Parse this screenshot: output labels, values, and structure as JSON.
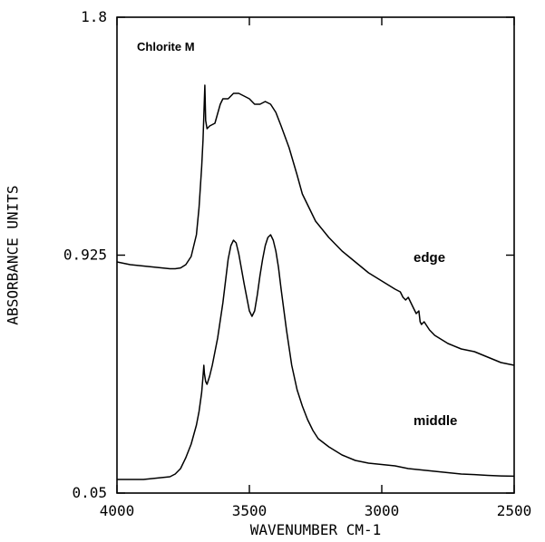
{
  "chart_data": {
    "type": "line",
    "title": "",
    "xlabel": "WAVENUMBER CM-1",
    "ylabel": "ABSORBANCE UNITS",
    "xlim": [
      4000,
      2500
    ],
    "ylim": [
      0.05,
      1.8
    ],
    "x_ticks": [
      {
        "value": 4000,
        "label": "4000"
      },
      {
        "value": 3500,
        "label": "3500"
      },
      {
        "value": 3000,
        "label": "3000"
      },
      {
        "value": 2500,
        "label": "2500"
      }
    ],
    "y_ticks": [
      {
        "value": 0.05,
        "label": "0.05"
      },
      {
        "value": 0.925,
        "label": "0.925"
      },
      {
        "value": 1.8,
        "label": "1.8"
      }
    ],
    "annotations": [
      {
        "text": "Chlorite M",
        "anchor": "top-left"
      }
    ],
    "series": [
      {
        "name": "edge",
        "label_at": [
          2880,
          0.9
        ],
        "x": [
          4000,
          3950,
          3900,
          3850,
          3800,
          3780,
          3760,
          3740,
          3720,
          3700,
          3690,
          3680,
          3675,
          3670,
          3668,
          3665,
          3660,
          3650,
          3630,
          3610,
          3600,
          3580,
          3560,
          3540,
          3520,
          3500,
          3480,
          3460,
          3440,
          3420,
          3400,
          3380,
          3350,
          3320,
          3300,
          3250,
          3200,
          3150,
          3100,
          3050,
          3000,
          2950,
          2930,
          2920,
          2910,
          2900,
          2880,
          2870,
          2860,
          2855,
          2850,
          2840,
          2820,
          2800,
          2750,
          2700,
          2650,
          2600,
          2550,
          2500
        ],
        "y": [
          0.9,
          0.89,
          0.885,
          0.88,
          0.875,
          0.875,
          0.878,
          0.89,
          0.92,
          1.0,
          1.1,
          1.25,
          1.35,
          1.5,
          1.55,
          1.42,
          1.39,
          1.4,
          1.41,
          1.48,
          1.5,
          1.5,
          1.52,
          1.52,
          1.51,
          1.5,
          1.48,
          1.48,
          1.49,
          1.48,
          1.45,
          1.4,
          1.32,
          1.22,
          1.15,
          1.05,
          0.99,
          0.94,
          0.9,
          0.86,
          0.83,
          0.8,
          0.79,
          0.77,
          0.76,
          0.77,
          0.73,
          0.71,
          0.72,
          0.68,
          0.67,
          0.68,
          0.65,
          0.63,
          0.6,
          0.58,
          0.57,
          0.55,
          0.53,
          0.52
        ]
      },
      {
        "name": "middle",
        "label_at": [
          2880,
          0.3
        ],
        "x": [
          4000,
          3950,
          3900,
          3850,
          3800,
          3780,
          3760,
          3740,
          3720,
          3700,
          3690,
          3680,
          3675,
          3672,
          3670,
          3665,
          3660,
          3650,
          3640,
          3620,
          3600,
          3590,
          3580,
          3570,
          3560,
          3550,
          3540,
          3520,
          3500,
          3490,
          3480,
          3470,
          3460,
          3450,
          3440,
          3430,
          3420,
          3410,
          3400,
          3390,
          3380,
          3360,
          3340,
          3320,
          3300,
          3280,
          3260,
          3240,
          3200,
          3150,
          3100,
          3050,
          3000,
          2950,
          2900,
          2850,
          2800,
          2750,
          2700,
          2650,
          2600,
          2550,
          2500
        ],
        "y": [
          0.1,
          0.1,
          0.1,
          0.105,
          0.11,
          0.12,
          0.14,
          0.18,
          0.23,
          0.3,
          0.35,
          0.42,
          0.48,
          0.52,
          0.49,
          0.46,
          0.45,
          0.48,
          0.52,
          0.62,
          0.75,
          0.83,
          0.91,
          0.96,
          0.98,
          0.97,
          0.93,
          0.82,
          0.72,
          0.7,
          0.72,
          0.78,
          0.85,
          0.91,
          0.96,
          0.99,
          1.0,
          0.98,
          0.94,
          0.88,
          0.8,
          0.65,
          0.52,
          0.43,
          0.37,
          0.32,
          0.28,
          0.25,
          0.22,
          0.19,
          0.17,
          0.16,
          0.155,
          0.15,
          0.14,
          0.135,
          0.13,
          0.125,
          0.12,
          0.118,
          0.115,
          0.113,
          0.112
        ]
      }
    ]
  }
}
